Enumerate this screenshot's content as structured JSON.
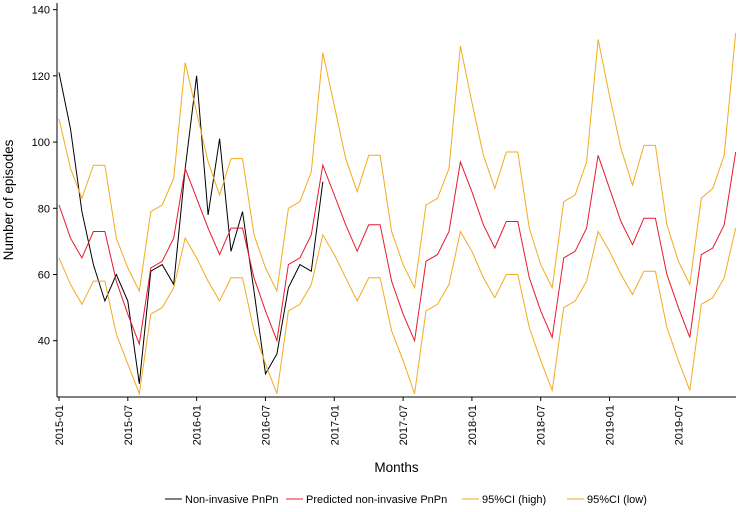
{
  "chart_data": {
    "type": "line",
    "title": "",
    "xlabel": "Months",
    "ylabel": "Number of episodes",
    "x_start": "2015-01",
    "x_ticks": [
      "2015-01",
      "2015-07",
      "2016-01",
      "2016-07",
      "2017-01",
      "2017-07",
      "2018-01",
      "2018-07",
      "2019-01",
      "2019-07"
    ],
    "y_ticks": [
      40,
      60,
      80,
      100,
      120,
      140
    ],
    "ylim": [
      23,
      142
    ],
    "grid": false,
    "legend_position": "bottom",
    "series": [
      {
        "name": "Non-invasive PnPn",
        "color": "#000000",
        "values": [
          121,
          104,
          79,
          63,
          52,
          60,
          52,
          27,
          61,
          63,
          57,
          92,
          120,
          78,
          101,
          67,
          79,
          55,
          30,
          36,
          56,
          63,
          61,
          88
        ]
      },
      {
        "name": "Predicted non-invasive PnPn",
        "color": "#e8192c",
        "values": [
          81,
          71,
          65,
          73,
          73,
          58,
          48,
          39,
          62,
          64,
          71,
          92,
          83,
          74,
          66,
          74,
          74,
          59,
          49,
          40,
          63,
          65,
          72,
          93,
          84,
          75,
          67,
          75,
          75,
          58,
          48,
          40,
          64,
          66,
          73,
          94,
          85,
          75,
          68,
          76,
          76,
          59,
          49,
          41,
          65,
          67,
          74,
          96,
          86,
          76,
          69,
          77,
          77,
          60,
          50,
          41,
          66,
          68,
          75,
          97
        ]
      },
      {
        "name": "95%CI (high)",
        "color": "#f2ab1f",
        "values": [
          107,
          92,
          83,
          93,
          93,
          71,
          62,
          55,
          79,
          81,
          89,
          124,
          109,
          94,
          84,
          95,
          95,
          72,
          62,
          55,
          80,
          82,
          91,
          127,
          111,
          95,
          85,
          96,
          96,
          73,
          63,
          56,
          81,
          83,
          92,
          129,
          112,
          96,
          86,
          97,
          97,
          74,
          63,
          56,
          82,
          84,
          94,
          131,
          114,
          98,
          87,
          99,
          99,
          75,
          64,
          57,
          83,
          86,
          96,
          133
        ]
      },
      {
        "name": "95%CI (low)",
        "color": "#f2ab1f",
        "values": [
          65,
          57,
          51,
          58,
          58,
          42,
          33,
          24,
          48,
          50,
          56,
          71,
          65,
          58,
          52,
          59,
          59,
          43,
          33,
          24,
          49,
          51,
          57,
          72,
          66,
          59,
          52,
          59,
          59,
          43,
          34,
          24,
          49,
          51,
          57,
          73,
          67,
          59,
          53,
          60,
          60,
          44,
          34,
          25,
          50,
          52,
          58,
          73,
          67,
          60,
          54,
          61,
          61,
          44,
          34,
          25,
          51,
          53,
          59,
          74
        ]
      }
    ]
  }
}
